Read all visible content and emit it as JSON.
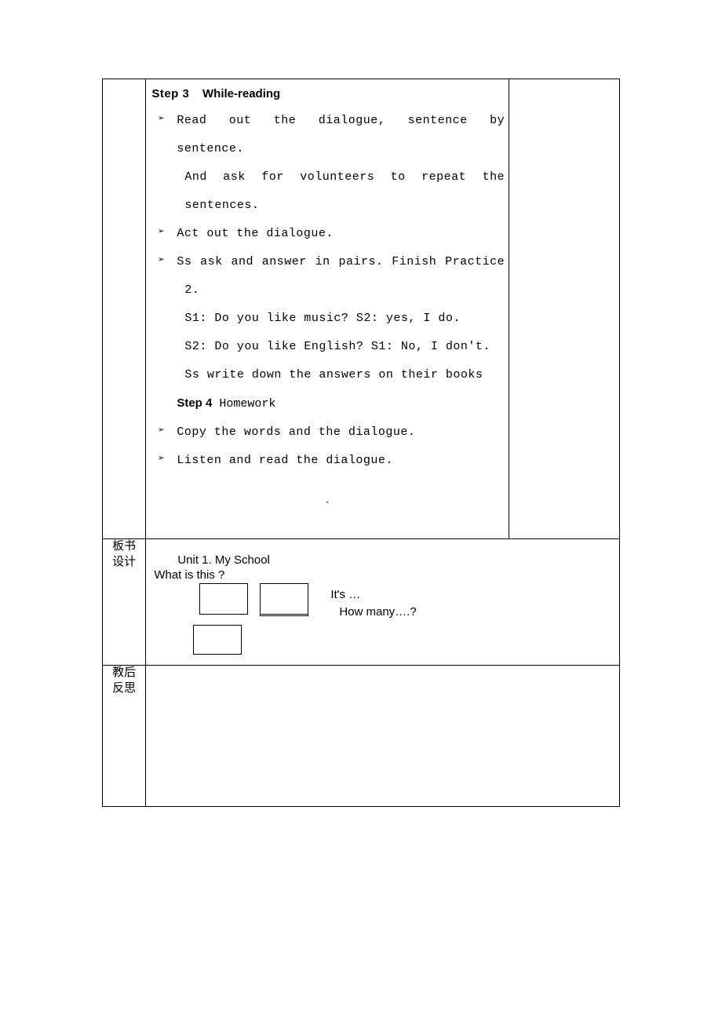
{
  "row1": {
    "step3_heading_label": "Step 3",
    "step3_heading_title": "While-reading",
    "items": [
      {
        "lines": [
          "Read out the dialogue, sentence by sentence.",
          "And ask for volunteers to repeat the",
          "sentences."
        ],
        "justified": [
          true,
          true,
          false
        ]
      },
      {
        "lines": [
          "Act out the dialogue."
        ],
        "justified": [
          false
        ]
      },
      {
        "lines": [
          "Ss ask and answer in pairs. Finish Practice",
          "2.",
          "S1: Do you like music?   S2: yes, I do.",
          "S2: Do you like English?   S1: No, I don't.",
          "Ss write down the answers on their books"
        ],
        "justified": [
          true,
          false,
          false,
          false,
          false
        ]
      }
    ],
    "step4_bold": "Step 4",
    "step4_rest": " Homework",
    "items2": [
      {
        "lines": [
          "Copy the words and the dialogue."
        ],
        "justified": [
          false
        ]
      },
      {
        "lines": [
          "Listen and read the dialogue."
        ],
        "justified": [
          false
        ]
      }
    ],
    "dot": "▪"
  },
  "row2": {
    "label_line1": "板书",
    "label_line2": "设计",
    "unit_title": "Unit 1. My School",
    "question": "What is this ?",
    "its": "It's …",
    "howmany": "How many….?"
  },
  "row3": {
    "label_line1": "教后",
    "label_line2": "反思"
  }
}
